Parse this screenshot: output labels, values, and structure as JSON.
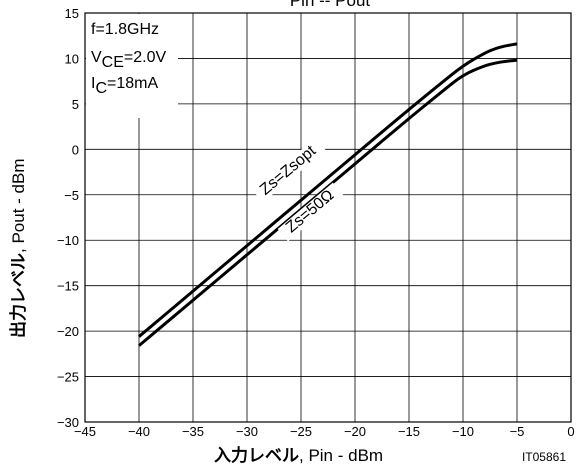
{
  "chart_data": {
    "type": "line",
    "title": "Pin -- Pout",
    "xlabel_jp": "入力レベル",
    "xlabel_en": ",  Pin  -  dBm",
    "ylabel_jp": "出力レベル",
    "ylabel_en": ",  Pout  -  dBm",
    "xlim": [
      -45,
      0
    ],
    "ylim": [
      -30,
      15
    ],
    "x_ticks": [
      -45,
      -40,
      -35,
      -30,
      -25,
      -20,
      -15,
      -10,
      -5,
      0
    ],
    "y_ticks": [
      15,
      10,
      5,
      0,
      -5,
      -10,
      -15,
      -20,
      -25,
      -30
    ],
    "grid": true,
    "conditions": {
      "freq": "f=1.8GHz",
      "vce_prefix": "V",
      "vce_sub": "CE",
      "vce_value": "=2.0V",
      "ic_prefix": "I",
      "ic_sub": "C",
      "ic_value": "=18mA"
    },
    "series": [
      {
        "name": "Zs=Zsopt",
        "x": [
          -40,
          -35,
          -30,
          -25,
          -20,
          -15,
          -12,
          -10,
          -8,
          -7,
          -6,
          -5
        ],
        "y": [
          -20.6,
          -15.6,
          -10.6,
          -5.6,
          -0.6,
          4.4,
          7.3,
          9.2,
          10.6,
          11.1,
          11.4,
          11.6
        ]
      },
      {
        "name": "Zs=50Ω",
        "x": [
          -40,
          -35,
          -30,
          -25,
          -20,
          -15,
          -12,
          -10,
          -8,
          -7,
          -6,
          -5
        ],
        "y": [
          -21.6,
          -16.6,
          -11.6,
          -6.6,
          -1.6,
          3.4,
          6.3,
          8.2,
          9.2,
          9.5,
          9.7,
          9.8
        ]
      }
    ],
    "code": "IT05861"
  }
}
